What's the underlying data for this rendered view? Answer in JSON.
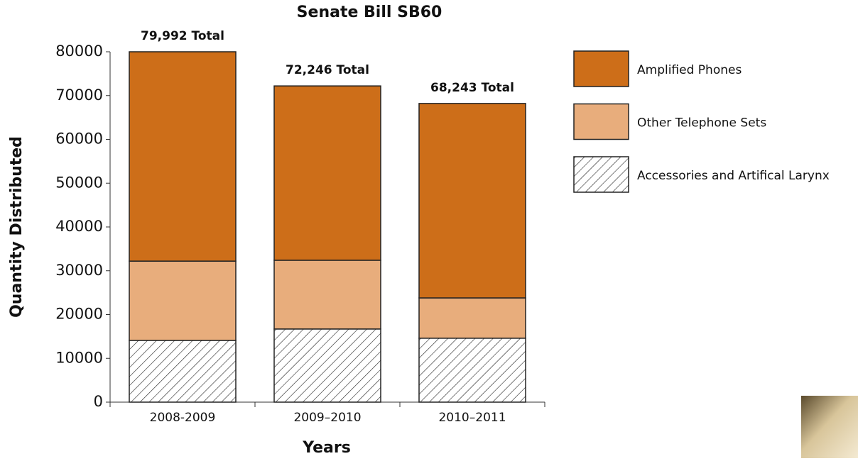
{
  "chart_data": {
    "type": "stacked-bar",
    "title": "Senate Bill SB60",
    "x_label": "Years",
    "y_label": "Quantity Distributed",
    "categories": [
      "2008-2009",
      "2009–2010",
      "2010–2011"
    ],
    "annotations": [
      "79,992 Total",
      "72,246 Total",
      "68,243 Total"
    ],
    "series": [
      {
        "name": "Accessories and Artifical Larynx",
        "color": "#ffffff",
        "hatch": true,
        "values": [
          14100,
          16700,
          14600
        ]
      },
      {
        "name": "Other Telephone Sets",
        "color": "#e8ad7c",
        "hatch": false,
        "values": [
          18100,
          15700,
          9200
        ]
      },
      {
        "name": "Amplified Phones",
        "color": "#cd6e19",
        "hatch": false,
        "values": [
          47800,
          39800,
          44400
        ]
      }
    ],
    "ylim": [
      0,
      80000
    ],
    "yticks": [
      0,
      10000,
      20000,
      30000,
      40000,
      50000,
      60000,
      70000,
      80000
    ],
    "grid": false,
    "legend": "right"
  }
}
